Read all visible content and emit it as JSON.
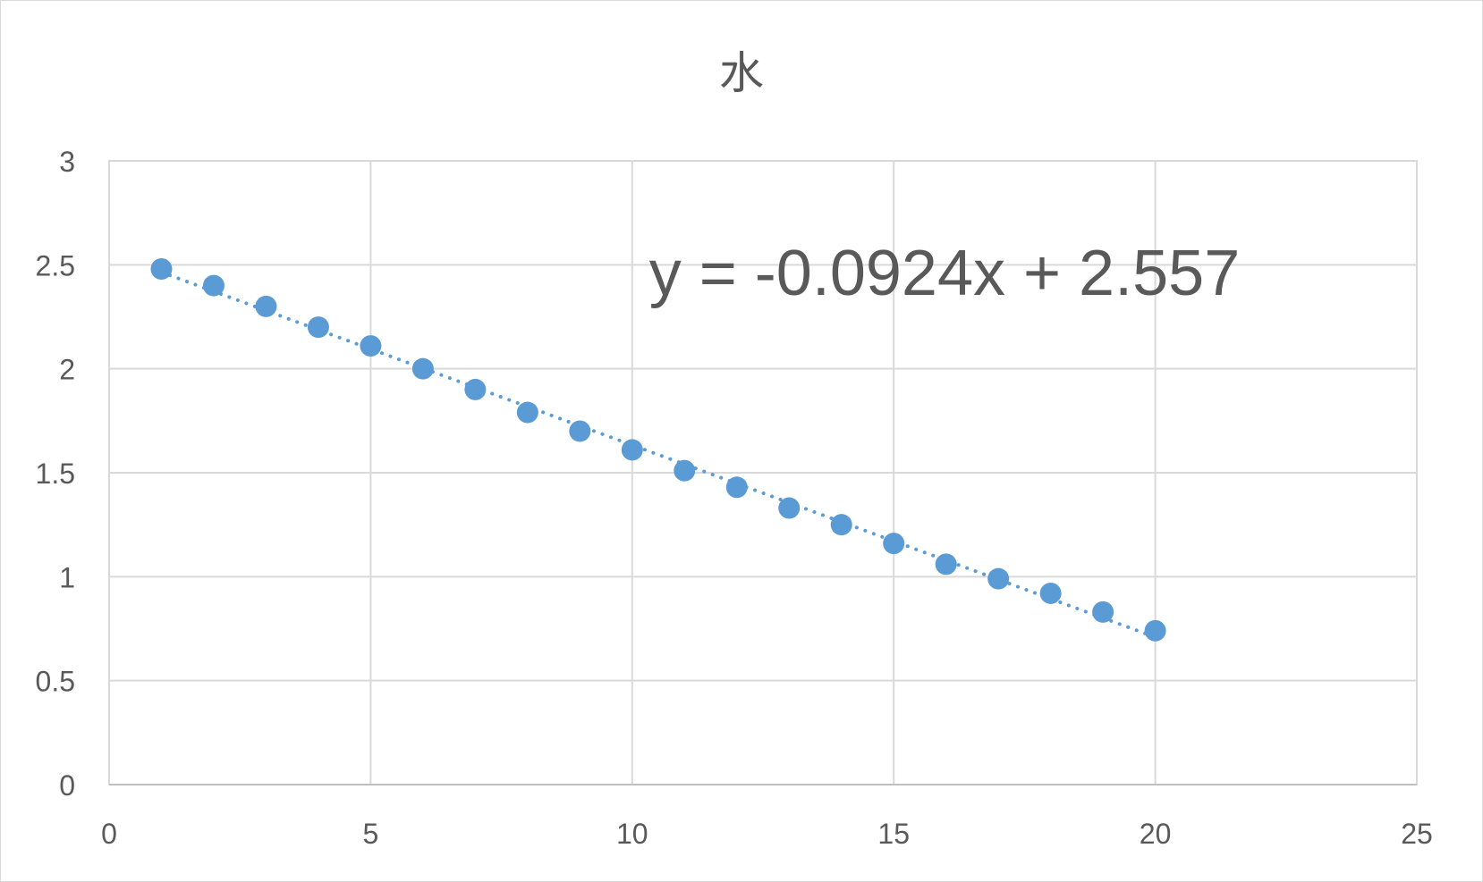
{
  "chart_data": {
    "type": "scatter",
    "title": "水",
    "xlabel": "",
    "ylabel": "",
    "xlim": [
      0,
      25
    ],
    "ylim": [
      0,
      3
    ],
    "x_ticks": [
      "0",
      "5",
      "10",
      "15",
      "20",
      "25"
    ],
    "y_ticks": [
      "0",
      "0.5",
      "1",
      "1.5",
      "2",
      "2.5",
      "3"
    ],
    "grid": true,
    "legend": "none",
    "series": [
      {
        "color": "#5b9bd5",
        "x": [
          1,
          2,
          3,
          4,
          5,
          6,
          7,
          8,
          9,
          10,
          11,
          12,
          13,
          14,
          15,
          16,
          17,
          18,
          19,
          20
        ],
        "y": [
          2.48,
          2.4,
          2.3,
          2.2,
          2.11,
          2.0,
          1.9,
          1.79,
          1.7,
          1.61,
          1.51,
          1.43,
          1.33,
          1.25,
          1.16,
          1.06,
          0.99,
          0.92,
          0.83,
          0.74
        ]
      }
    ],
    "trendline": {
      "type": "linear",
      "style": "dotted",
      "color": "#5b9bd5",
      "slope": -0.0924,
      "intercept": 2.557,
      "x_range": [
        1,
        20
      ],
      "equation": "y = -0.0924x + 2.557"
    }
  }
}
